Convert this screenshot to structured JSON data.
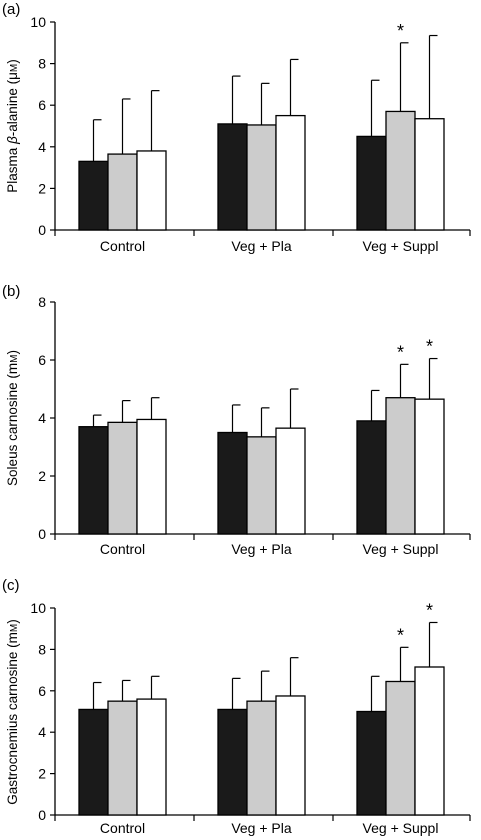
{
  "chart_data": [
    {
      "type": "bar",
      "panel_label": "(a)",
      "ylabel_parts": [
        "Plasma ",
        "β",
        "-alanine (μ",
        "M",
        ")"
      ],
      "ylim": [
        0,
        10
      ],
      "yticks": [
        0,
        2,
        4,
        6,
        8,
        10
      ],
      "categories": [
        "Control",
        "Veg + Pla",
        "Veg + Suppl"
      ],
      "grid": false,
      "series": [
        {
          "fill": "#1a1a1a",
          "values": [
            3.3,
            5.1,
            4.5
          ],
          "errors": [
            2.0,
            2.3,
            2.7
          ]
        },
        {
          "fill": "#cccccc",
          "values": [
            3.65,
            5.05,
            5.7
          ],
          "errors": [
            2.65,
            2.0,
            3.3
          ]
        },
        {
          "fill": "#ffffff",
          "values": [
            3.8,
            5.5,
            5.35
          ],
          "errors": [
            2.9,
            2.7,
            4.0
          ]
        }
      ],
      "annotations": [
        {
          "category": 2,
          "series": 1,
          "text": "*"
        }
      ]
    },
    {
      "type": "bar",
      "panel_label": "(b)",
      "ylabel_parts": [
        "Soleus carnosine (m",
        "M",
        ")"
      ],
      "ylim": [
        0,
        8
      ],
      "yticks": [
        0,
        2,
        4,
        6,
        8
      ],
      "categories": [
        "Control",
        "Veg + Pla",
        "Veg + Suppl"
      ],
      "grid": false,
      "series": [
        {
          "fill": "#1a1a1a",
          "values": [
            3.7,
            3.5,
            3.9
          ],
          "errors": [
            0.4,
            0.95,
            1.05
          ]
        },
        {
          "fill": "#cccccc",
          "values": [
            3.85,
            3.35,
            4.7
          ],
          "errors": [
            0.75,
            1.0,
            1.15
          ]
        },
        {
          "fill": "#ffffff",
          "values": [
            3.95,
            3.65,
            4.65
          ],
          "errors": [
            0.75,
            1.35,
            1.4
          ]
        }
      ],
      "annotations": [
        {
          "category": 2,
          "series": 1,
          "text": "*"
        },
        {
          "category": 2,
          "series": 2,
          "text": "*"
        }
      ]
    },
    {
      "type": "bar",
      "panel_label": "(c)",
      "ylabel_parts": [
        "Gastrocnemius carnosine (m",
        "M",
        ")"
      ],
      "ylim": [
        0,
        10
      ],
      "yticks": [
        0,
        2,
        4,
        6,
        8,
        10
      ],
      "categories": [
        "Control",
        "Veg + Pla",
        "Veg + Suppl"
      ],
      "grid": false,
      "series": [
        {
          "fill": "#1a1a1a",
          "values": [
            5.1,
            5.1,
            5.0
          ],
          "errors": [
            1.3,
            1.5,
            1.7
          ]
        },
        {
          "fill": "#cccccc",
          "values": [
            5.5,
            5.5,
            6.45
          ],
          "errors": [
            1.0,
            1.45,
            1.65
          ]
        },
        {
          "fill": "#ffffff",
          "values": [
            5.6,
            5.75,
            7.15
          ],
          "errors": [
            1.1,
            1.85,
            2.15
          ]
        }
      ],
      "annotations": [
        {
          "category": 2,
          "series": 1,
          "text": "*"
        },
        {
          "category": 2,
          "series": 2,
          "text": "*"
        }
      ]
    }
  ]
}
